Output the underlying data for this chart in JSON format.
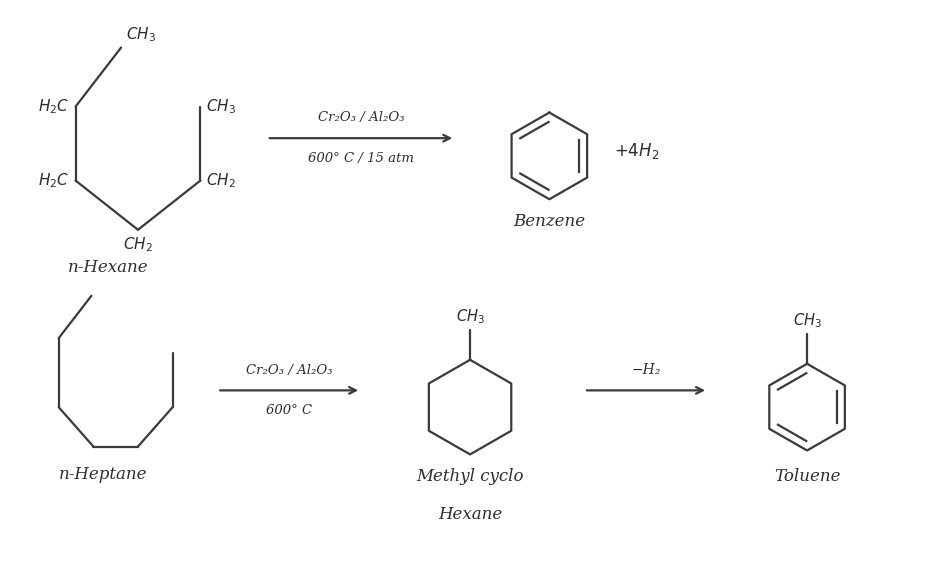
{
  "bg_color": "#ffffff",
  "line_color": "#3a3a3a",
  "text_color": "#2d2d2d",
  "figsize": [
    9.52,
    5.64
  ],
  "dpi": 100,
  "top_reaction": {
    "reactant_label": "n-Hexane",
    "arrow_label_top": "Cr₂O₃ / Al₂O₃",
    "arrow_label_bottom": "600° C / 15 atm",
    "product_label": "Benzene",
    "side_product": "+4H₂"
  },
  "bottom_reaction": {
    "reactant_label": "n-Heptane",
    "arrow_label_top": "Cr₂O₃ / Al₂O₃",
    "arrow_label_bottom": "600° C",
    "intermediate_label1": "Methyl cyclo",
    "intermediate_label2": "Hexane",
    "arrow2_label": "−H₂",
    "product_label": "Toluene"
  }
}
